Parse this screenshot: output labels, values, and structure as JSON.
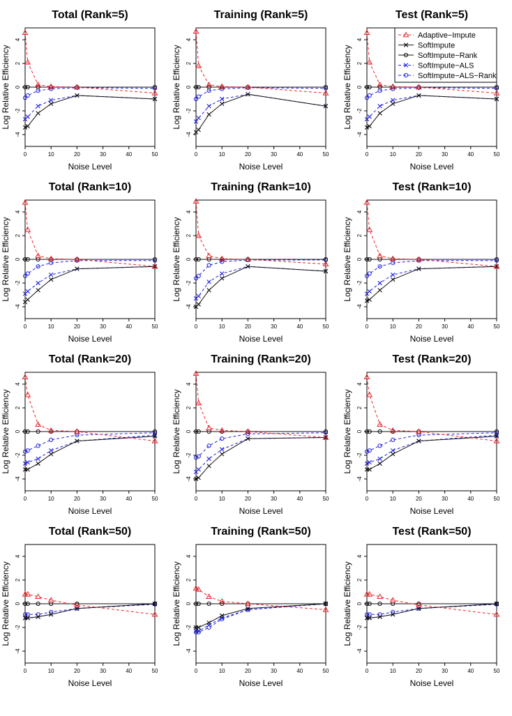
{
  "colors": {
    "red": "#e8242a",
    "black": "#111111",
    "blue": "#2222e0"
  },
  "legend_entries": [
    {
      "name": "Adaptive−Impute",
      "color": "#e8242a",
      "dash": "4,3",
      "marker": "triangle"
    },
    {
      "name": "SoftImpute",
      "color": "#111111",
      "dash": "",
      "marker": "x"
    },
    {
      "name": "SoftImpute−Rank",
      "color": "#111111",
      "dash": "",
      "marker": "circle"
    },
    {
      "name": "SoftImpute−ALS",
      "color": "#2222e0",
      "dash": "4,3",
      "marker": "x"
    },
    {
      "name": "SoftImpute−ALS−Rank",
      "color": "#2222e0",
      "dash": "4,3",
      "marker": "circle"
    }
  ],
  "chart_data": [
    {
      "type": "line",
      "title": "Total (Rank=5)",
      "xlabel": "Noise Level",
      "ylabel": "Log Relative Efficiency",
      "xlim": [
        0,
        50
      ],
      "ylim": [
        -5,
        5
      ],
      "xticks": [
        0,
        10,
        20,
        30,
        40,
        50
      ],
      "yticks": [
        -4,
        -2,
        0,
        2,
        4
      ],
      "x": [
        0,
        1,
        5,
        10,
        20,
        50
      ],
      "legend": "none",
      "series": [
        {
          "name": "Adaptive−Impute",
          "values": [
            4.6,
            2.1,
            0.2,
            0.05,
            0,
            -0.5
          ]
        },
        {
          "name": "SoftImpute",
          "values": [
            -3.4,
            -3.3,
            -2.2,
            -1.4,
            -0.7,
            -1.0
          ]
        },
        {
          "name": "SoftImpute−Rank",
          "values": [
            0,
            0,
            0,
            0,
            0,
            0
          ]
        },
        {
          "name": "SoftImpute−ALS",
          "values": [
            -2.7,
            -2.5,
            -1.6,
            -1.1,
            -0.7,
            -1.0
          ]
        },
        {
          "name": "SoftImpute−ALS−Rank",
          "values": [
            -0.9,
            -0.7,
            -0.3,
            -0.15,
            -0.05,
            -0.1
          ]
        }
      ]
    },
    {
      "type": "line",
      "title": "Training (Rank=5)",
      "xlabel": "Noise Level",
      "ylabel": "Log Relative Efficiency",
      "xlim": [
        0,
        50
      ],
      "ylim": [
        -5,
        5
      ],
      "xticks": [
        0,
        10,
        20,
        30,
        40,
        50
      ],
      "yticks": [
        -4,
        -2,
        0,
        2,
        4
      ],
      "x": [
        0,
        1,
        5,
        10,
        20,
        50
      ],
      "legend": "none",
      "series": [
        {
          "name": "Adaptive−Impute",
          "values": [
            4.7,
            1.8,
            0.2,
            0.05,
            0,
            -0.5
          ]
        },
        {
          "name": "SoftImpute",
          "values": [
            -3.8,
            -3.6,
            -2.3,
            -1.4,
            -0.6,
            -1.6
          ]
        },
        {
          "name": "SoftImpute−Rank",
          "values": [
            0,
            0,
            0,
            0,
            0,
            0
          ]
        },
        {
          "name": "SoftImpute−ALS",
          "values": [
            -2.9,
            -2.6,
            -1.6,
            -1.0,
            -0.6,
            -1.6
          ]
        },
        {
          "name": "SoftImpute−ALS−Rank",
          "values": [
            -1.0,
            -0.8,
            -0.3,
            -0.15,
            -0.05,
            -0.1
          ]
        }
      ]
    },
    {
      "type": "line",
      "title": "Test (Rank=5)",
      "xlabel": "Noise Level",
      "ylabel": "Log Relative Efficiency",
      "xlim": [
        0,
        50
      ],
      "ylim": [
        -5,
        5
      ],
      "xticks": [
        0,
        10,
        20,
        30,
        40,
        50
      ],
      "yticks": [
        -4,
        -2,
        0,
        2,
        4
      ],
      "x": [
        0,
        1,
        5,
        10,
        20,
        50
      ],
      "legend": "top-right",
      "series": [
        {
          "name": "Adaptive−Impute",
          "values": [
            4.6,
            2.1,
            0.2,
            0.05,
            0,
            -0.5
          ]
        },
        {
          "name": "SoftImpute",
          "values": [
            -3.4,
            -3.3,
            -2.2,
            -1.4,
            -0.7,
            -1.0
          ]
        },
        {
          "name": "SoftImpute−Rank",
          "values": [
            0,
            0,
            0,
            0,
            0,
            0
          ]
        },
        {
          "name": "SoftImpute−ALS",
          "values": [
            -2.7,
            -2.5,
            -1.6,
            -1.1,
            -0.7,
            -1.0
          ]
        },
        {
          "name": "SoftImpute−ALS−Rank",
          "values": [
            -0.9,
            -0.7,
            -0.3,
            -0.15,
            -0.05,
            -0.1
          ]
        }
      ]
    },
    {
      "type": "line",
      "title": "Total (Rank=10)",
      "xlabel": "Noise Level",
      "ylabel": "Log Relative Efficiency",
      "xlim": [
        0,
        50
      ],
      "ylim": [
        -5,
        5
      ],
      "xticks": [
        0,
        10,
        20,
        30,
        40,
        50
      ],
      "yticks": [
        -4,
        -2,
        0,
        2,
        4
      ],
      "x": [
        0,
        1,
        5,
        10,
        20,
        50
      ],
      "legend": "none",
      "series": [
        {
          "name": "Adaptive−Impute",
          "values": [
            4.8,
            2.5,
            0.3,
            0.05,
            0,
            -0.6
          ]
        },
        {
          "name": "SoftImpute",
          "values": [
            -3.6,
            -3.4,
            -2.6,
            -1.7,
            -0.8,
            -0.6
          ]
        },
        {
          "name": "SoftImpute−Rank",
          "values": [
            0,
            0,
            0,
            0,
            0,
            0
          ]
        },
        {
          "name": "SoftImpute−ALS",
          "values": [
            -2.9,
            -2.7,
            -2.0,
            -1.3,
            -0.8,
            -0.6
          ]
        },
        {
          "name": "SoftImpute−ALS−Rank",
          "values": [
            -1.4,
            -1.2,
            -0.6,
            -0.3,
            -0.1,
            -0.1
          ]
        }
      ]
    },
    {
      "type": "line",
      "title": "Training (Rank=10)",
      "xlabel": "Noise Level",
      "ylabel": "Log Relative Efficiency",
      "xlim": [
        0,
        50
      ],
      "ylim": [
        -5,
        5
      ],
      "xticks": [
        0,
        10,
        20,
        30,
        40,
        50
      ],
      "yticks": [
        -4,
        -2,
        0,
        2,
        4
      ],
      "x": [
        0,
        1,
        5,
        10,
        20,
        50
      ],
      "legend": "none",
      "series": [
        {
          "name": "Adaptive−Impute",
          "values": [
            4.9,
            2.0,
            0.3,
            0.05,
            0,
            -0.4
          ]
        },
        {
          "name": "SoftImpute",
          "values": [
            -4.0,
            -3.8,
            -2.6,
            -1.6,
            -0.6,
            -1.0
          ]
        },
        {
          "name": "SoftImpute−Rank",
          "values": [
            0,
            0,
            0,
            0,
            0,
            0
          ]
        },
        {
          "name": "SoftImpute−ALS",
          "values": [
            -3.3,
            -3.1,
            -1.9,
            -1.2,
            -0.6,
            -1.0
          ]
        },
        {
          "name": "SoftImpute−ALS−Rank",
          "values": [
            -1.6,
            -1.4,
            -0.5,
            -0.2,
            -0.05,
            -0.05
          ]
        }
      ]
    },
    {
      "type": "line",
      "title": "Test (Rank=10)",
      "xlabel": "Noise Level",
      "ylabel": "Log Relative Efficiency",
      "xlim": [
        0,
        50
      ],
      "ylim": [
        -5,
        5
      ],
      "xticks": [
        0,
        10,
        20,
        30,
        40,
        50
      ],
      "yticks": [
        -4,
        -2,
        0,
        2,
        4
      ],
      "x": [
        0,
        1,
        5,
        10,
        20,
        50
      ],
      "legend": "none",
      "series": [
        {
          "name": "Adaptive−Impute",
          "values": [
            4.8,
            2.5,
            0.3,
            0.05,
            0,
            -0.6
          ]
        },
        {
          "name": "SoftImpute",
          "values": [
            -3.5,
            -3.4,
            -2.6,
            -1.7,
            -0.8,
            -0.6
          ]
        },
        {
          "name": "SoftImpute−Rank",
          "values": [
            0,
            0,
            0,
            0,
            0,
            0
          ]
        },
        {
          "name": "SoftImpute−ALS",
          "values": [
            -2.9,
            -2.7,
            -2.0,
            -1.3,
            -0.8,
            -0.6
          ]
        },
        {
          "name": "SoftImpute−ALS−Rank",
          "values": [
            -1.4,
            -1.2,
            -0.6,
            -0.3,
            -0.1,
            -0.1
          ]
        }
      ]
    },
    {
      "type": "line",
      "title": "Total (Rank=20)",
      "xlabel": "Noise Level",
      "ylabel": "Log Relative Efficiency",
      "xlim": [
        0,
        50
      ],
      "ylim": [
        -5,
        5
      ],
      "xticks": [
        0,
        10,
        20,
        30,
        40,
        50
      ],
      "yticks": [
        -4,
        -2,
        0,
        2,
        4
      ],
      "x": [
        0,
        1,
        5,
        10,
        20,
        50
      ],
      "legend": "none",
      "series": [
        {
          "name": "Adaptive−Impute",
          "values": [
            4.6,
            3.1,
            0.6,
            0.1,
            0,
            -0.8
          ]
        },
        {
          "name": "SoftImpute",
          "values": [
            -3.2,
            -3.2,
            -2.7,
            -1.9,
            -0.8,
            -0.4
          ]
        },
        {
          "name": "SoftImpute−Rank",
          "values": [
            0,
            0,
            0,
            0,
            0,
            0
          ]
        },
        {
          "name": "SoftImpute−ALS",
          "values": [
            -2.7,
            -2.6,
            -2.3,
            -1.6,
            -0.8,
            -0.3
          ]
        },
        {
          "name": "SoftImpute−ALS−Rank",
          "values": [
            -1.7,
            -1.6,
            -1.2,
            -0.7,
            -0.3,
            -0.1
          ]
        }
      ]
    },
    {
      "type": "line",
      "title": "Training (Rank=20)",
      "xlabel": "Noise Level",
      "ylabel": "Log Relative Efficiency",
      "xlim": [
        0,
        50
      ],
      "ylim": [
        -5,
        5
      ],
      "xticks": [
        0,
        10,
        20,
        30,
        40,
        50
      ],
      "yticks": [
        -4,
        -2,
        0,
        2,
        4
      ],
      "x": [
        0,
        1,
        5,
        10,
        20,
        50
      ],
      "legend": "none",
      "series": [
        {
          "name": "Adaptive−Impute",
          "values": [
            4.9,
            2.4,
            0.3,
            0.1,
            0,
            -0.5
          ]
        },
        {
          "name": "SoftImpute",
          "values": [
            -4.0,
            -3.9,
            -2.9,
            -1.9,
            -0.6,
            -0.5
          ]
        },
        {
          "name": "SoftImpute−Rank",
          "values": [
            0,
            0,
            0,
            0,
            0,
            0
          ]
        },
        {
          "name": "SoftImpute−ALS",
          "values": [
            -3.4,
            -3.2,
            -2.3,
            -1.5,
            -0.6,
            -0.5
          ]
        },
        {
          "name": "SoftImpute−ALS−Rank",
          "values": [
            -2.2,
            -2.1,
            -1.2,
            -0.6,
            -0.2,
            -0.1
          ]
        }
      ]
    },
    {
      "type": "line",
      "title": "Test (Rank=20)",
      "xlabel": "Noise Level",
      "ylabel": "Log Relative Efficiency",
      "xlim": [
        0,
        50
      ],
      "ylim": [
        -5,
        5
      ],
      "xticks": [
        0,
        10,
        20,
        30,
        40,
        50
      ],
      "yticks": [
        -4,
        -2,
        0,
        2,
        4
      ],
      "x": [
        0,
        1,
        5,
        10,
        20,
        50
      ],
      "legend": "none",
      "series": [
        {
          "name": "Adaptive−Impute",
          "values": [
            4.6,
            3.1,
            0.6,
            0.1,
            0,
            -0.8
          ]
        },
        {
          "name": "SoftImpute",
          "values": [
            -3.2,
            -3.2,
            -2.7,
            -1.9,
            -0.8,
            -0.4
          ]
        },
        {
          "name": "SoftImpute−Rank",
          "values": [
            0,
            0,
            0,
            0,
            0,
            0
          ]
        },
        {
          "name": "SoftImpute−ALS",
          "values": [
            -2.7,
            -2.6,
            -2.3,
            -1.6,
            -0.8,
            -0.3
          ]
        },
        {
          "name": "SoftImpute−ALS−Rank",
          "values": [
            -1.7,
            -1.6,
            -1.2,
            -0.7,
            -0.3,
            -0.1
          ]
        }
      ]
    },
    {
      "type": "line",
      "title": "Total (Rank=50)",
      "xlabel": "Noise Level",
      "ylabel": "Log Relative Efficiency",
      "xlim": [
        0,
        50
      ],
      "ylim": [
        -5,
        5
      ],
      "xticks": [
        0,
        10,
        20,
        30,
        40,
        50
      ],
      "yticks": [
        -4,
        -2,
        0,
        2,
        4
      ],
      "x": [
        0,
        1,
        5,
        10,
        20,
        50
      ],
      "legend": "none",
      "series": [
        {
          "name": "Adaptive−Impute",
          "values": [
            0.8,
            0.8,
            0.6,
            0.3,
            -0.1,
            -0.9
          ]
        },
        {
          "name": "SoftImpute",
          "values": [
            -1.2,
            -1.2,
            -1.1,
            -0.9,
            -0.4,
            0
          ]
        },
        {
          "name": "SoftImpute−Rank",
          "values": [
            0,
            0,
            0,
            0,
            0,
            0
          ]
        },
        {
          "name": "SoftImpute−ALS",
          "values": [
            -1.2,
            -1.2,
            -1.1,
            -0.9,
            -0.4,
            0
          ]
        },
        {
          "name": "SoftImpute−ALS−Rank",
          "values": [
            -0.9,
            -0.9,
            -0.9,
            -0.7,
            -0.4,
            -0.05
          ]
        }
      ]
    },
    {
      "type": "line",
      "title": "Training (Rank=50)",
      "xlabel": "Noise Level",
      "ylabel": "Log Relative Efficiency",
      "xlim": [
        0,
        50
      ],
      "ylim": [
        -5,
        5
      ],
      "xticks": [
        0,
        10,
        20,
        30,
        40,
        50
      ],
      "yticks": [
        -4,
        -2,
        0,
        2,
        4
      ],
      "x": [
        0,
        1,
        5,
        10,
        20,
        50
      ],
      "legend": "none",
      "series": [
        {
          "name": "Adaptive−Impute",
          "values": [
            1.3,
            1.2,
            0.6,
            0.2,
            0,
            -0.5
          ]
        },
        {
          "name": "SoftImpute",
          "values": [
            -2.0,
            -2.0,
            -1.6,
            -1.0,
            -0.4,
            0
          ]
        },
        {
          "name": "SoftImpute−Rank",
          "values": [
            0,
            0,
            0,
            0,
            0,
            0
          ]
        },
        {
          "name": "SoftImpute−ALS",
          "values": [
            -2.3,
            -2.3,
            -1.8,
            -1.2,
            -0.5,
            0
          ]
        },
        {
          "name": "SoftImpute−ALS−Rank",
          "values": [
            -2.4,
            -2.4,
            -2.0,
            -1.3,
            -0.5,
            0
          ]
        }
      ]
    },
    {
      "type": "line",
      "title": "Test (Rank=50)",
      "xlabel": "Noise Level",
      "ylabel": "Log Relative Efficiency",
      "xlim": [
        0,
        50
      ],
      "ylim": [
        -5,
        5
      ],
      "xticks": [
        0,
        10,
        20,
        30,
        40,
        50
      ],
      "yticks": [
        -4,
        -2,
        0,
        2,
        4
      ],
      "x": [
        0,
        1,
        5,
        10,
        20,
        50
      ],
      "legend": "none",
      "series": [
        {
          "name": "Adaptive−Impute",
          "values": [
            0.8,
            0.8,
            0.6,
            0.3,
            -0.1,
            -0.9
          ]
        },
        {
          "name": "SoftImpute",
          "values": [
            -1.2,
            -1.2,
            -1.1,
            -0.9,
            -0.4,
            0
          ]
        },
        {
          "name": "SoftImpute−Rank",
          "values": [
            0,
            0,
            0,
            0,
            0,
            0
          ]
        },
        {
          "name": "SoftImpute−ALS",
          "values": [
            -1.2,
            -1.2,
            -1.1,
            -0.9,
            -0.4,
            0
          ]
        },
        {
          "name": "SoftImpute−ALS−Rank",
          "values": [
            -0.9,
            -0.9,
            -0.9,
            -0.7,
            -0.4,
            -0.05
          ]
        }
      ]
    }
  ]
}
